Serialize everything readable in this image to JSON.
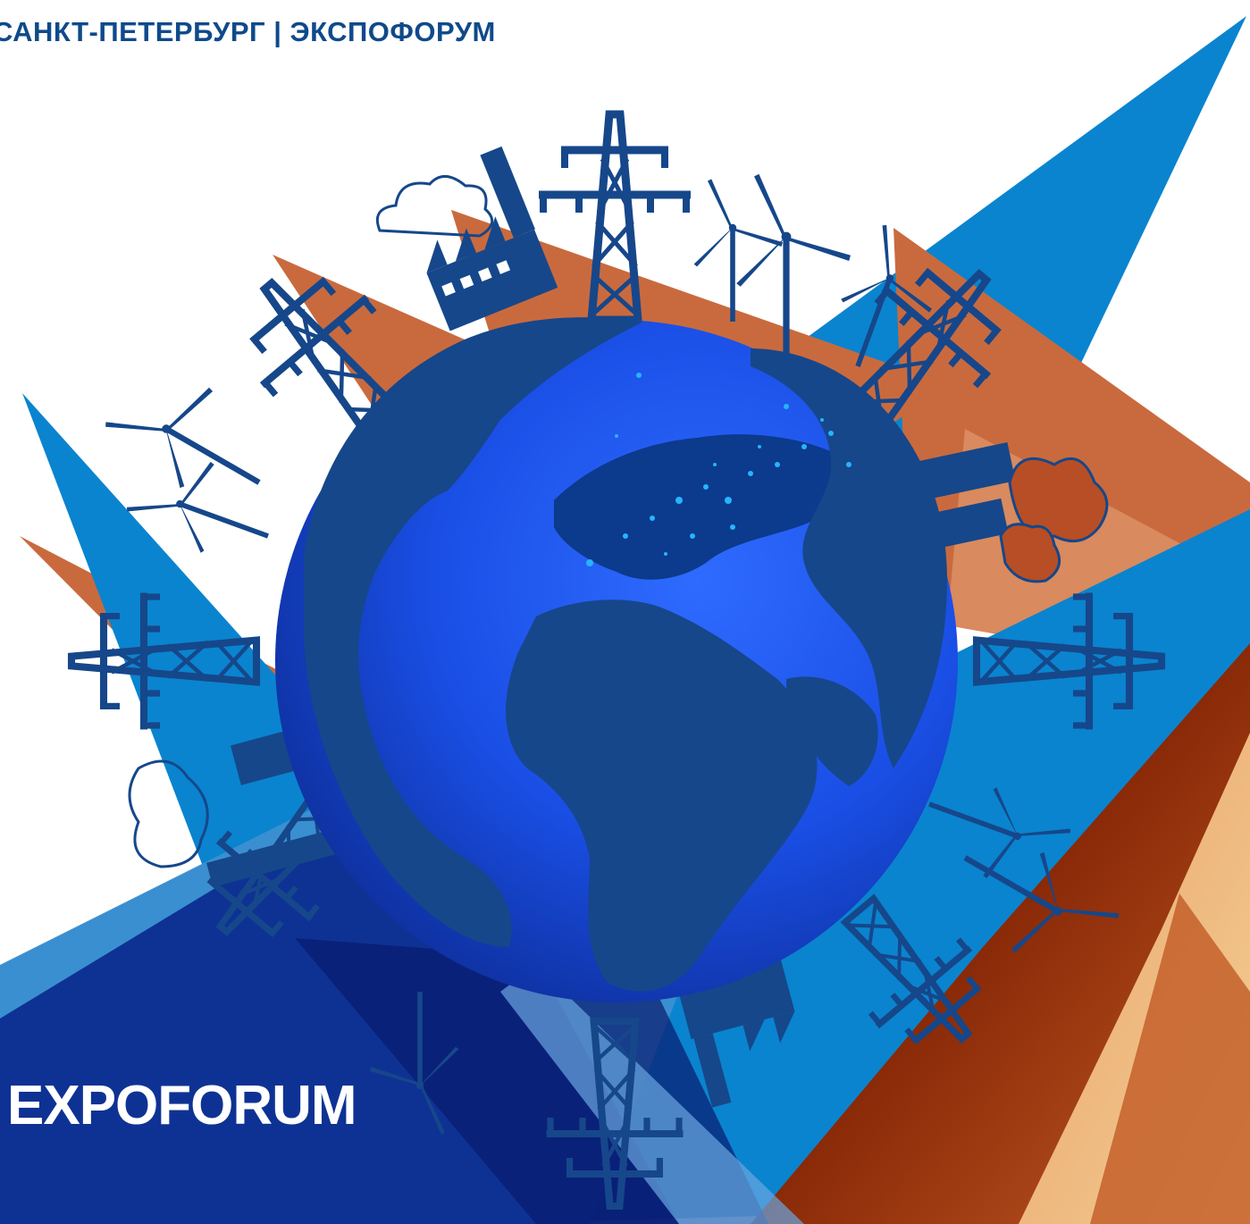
{
  "header": {
    "location_line": "САНКТ-ПЕТЕРБУРГ | ЭКСПОФОРУМ"
  },
  "brand": {
    "logo_text": "EXPOFORUM"
  },
  "scene": {
    "icons": [
      "globe-icon",
      "power-pylon-icon",
      "wind-turbine-icon",
      "factory-icon",
      "cooling-tower-icon",
      "cloud-icon"
    ]
  },
  "colors": {
    "primary_blue": "#0f4a8a",
    "bright_blue": "#0a84cf",
    "deep_blue": "#0b2a8e",
    "orange": "#c96a3e",
    "dark_orange": "#8a2a08",
    "globe_blue": "#1d4fe0",
    "land_blue": "#16478a",
    "white": "#ffffff"
  }
}
